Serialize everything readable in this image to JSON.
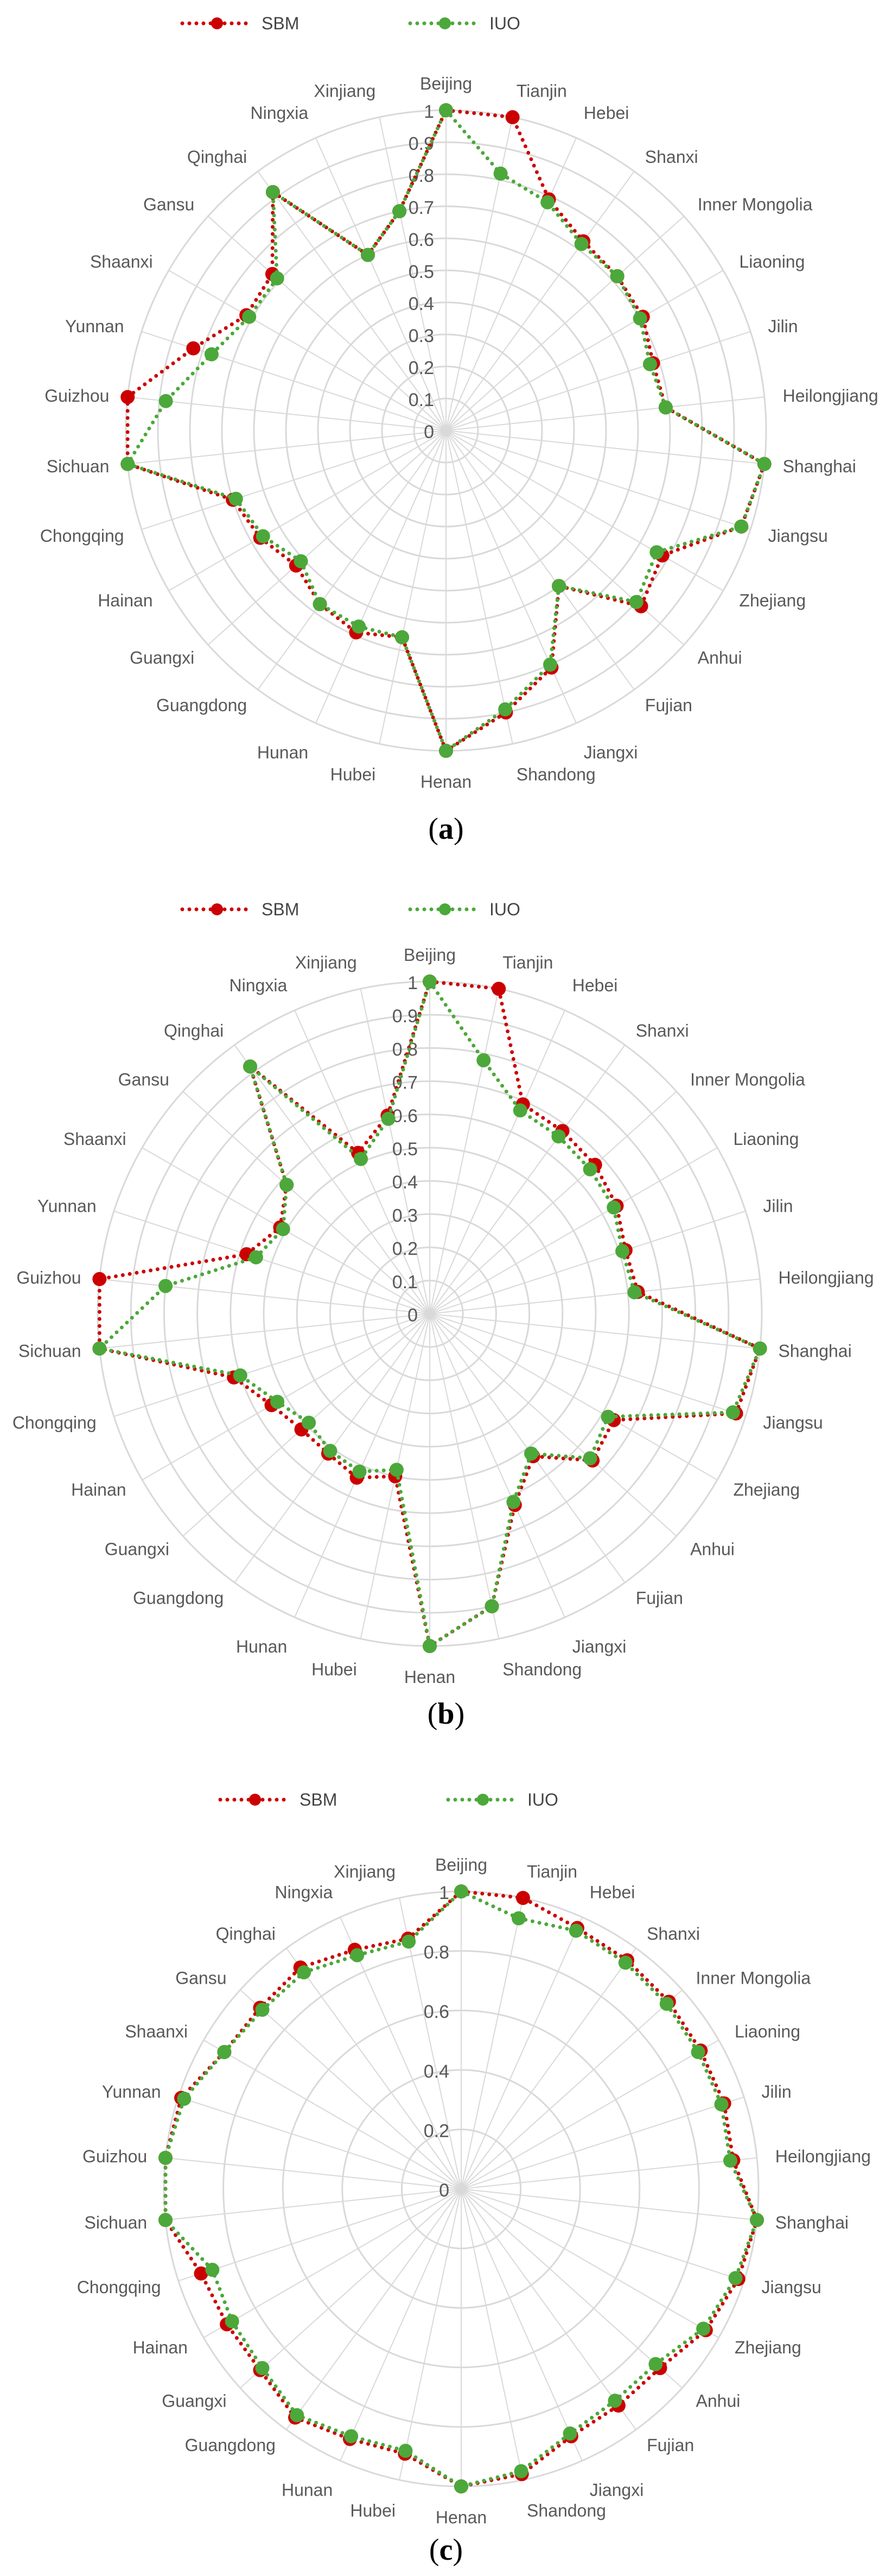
{
  "legend": {
    "sbm": "SBM",
    "iuo": "IUO"
  },
  "colors": {
    "sbm": "#CC0000",
    "iuo": "#4CA83A",
    "grid": "#D9D9D9",
    "text": "#595959"
  },
  "captions": {
    "a": {
      "open": "(",
      "letter": "a",
      "close": ")"
    },
    "b": {
      "open": "(",
      "letter": "b",
      "close": ")"
    },
    "c": {
      "open": "(",
      "letter": "c",
      "close": ")"
    }
  },
  "chart_data": [
    {
      "id": "a",
      "type": "radar",
      "categories": [
        "Beijing",
        "Tianjin",
        "Hebei",
        "Shanxi",
        "Inner Mongolia",
        "Liaoning",
        "Jilin",
        "Heilongjiang",
        "Shanghai",
        "Jiangsu",
        "Zhejiang",
        "Anhui",
        "Fujian",
        "Jiangxi",
        "Shandong",
        "Henan",
        "Hubei",
        "Hunan",
        "Guangdong",
        "Guangxi",
        "Hainan",
        "Chongqing",
        "Sichuan",
        "Guizhou",
        "Yunnan",
        "Shaanxi",
        "Gansu",
        "Qinghai",
        "Ningxia",
        "Xinjiang"
      ],
      "ticks": [
        "0",
        "0.1",
        "0.2",
        "0.3",
        "0.4",
        "0.5",
        "0.6",
        "0.7",
        "0.8",
        "0.9",
        "1"
      ],
      "rmax": 1,
      "series": [
        {
          "name": "SBM",
          "values": [
            1,
            1,
            0.79,
            0.73,
            0.72,
            0.71,
            0.68,
            0.69,
            1,
            0.97,
            0.78,
            0.82,
            0.6,
            0.81,
            0.9,
            1,
            0.66,
            0.69,
            0.67,
            0.63,
            0.67,
            0.7,
            1,
            1,
            0.83,
            0.72,
            0.73,
            0.92,
            0.6,
            0.7
          ]
        },
        {
          "name": "IUO",
          "values": [
            1,
            0.82,
            0.78,
            0.72,
            0.72,
            0.7,
            0.67,
            0.69,
            1,
            0.97,
            0.76,
            0.8,
            0.6,
            0.8,
            0.89,
            1,
            0.66,
            0.67,
            0.67,
            0.61,
            0.66,
            0.69,
            1,
            0.88,
            0.77,
            0.71,
            0.71,
            0.92,
            0.6,
            0.7
          ]
        }
      ]
    },
    {
      "id": "b",
      "type": "radar",
      "categories": [
        "Beijing",
        "Tianjin",
        "Hebei",
        "Shanxi",
        "Inner Mongolia",
        "Liaoning",
        "Jilin",
        "Heilongjiang",
        "Shanghai",
        "Jiangsu",
        "Zhejiang",
        "Anhui",
        "Fujian",
        "Jiangxi",
        "Shandong",
        "Henan",
        "Hubei",
        "Hunan",
        "Guangdong",
        "Guangxi",
        "Hainan",
        "Chongqing",
        "Sichuan",
        "Guizhou",
        "Yunnan",
        "Shaanxi",
        "Gansu",
        "Qinghai",
        "Ningxia",
        "Xinjiang"
      ],
      "ticks": [
        "0",
        "0.1",
        "0.2",
        "0.3",
        "0.4",
        "0.5",
        "0.6",
        "0.7",
        "0.8",
        "0.9",
        "1"
      ],
      "rmax": 1,
      "series": [
        {
          "name": "SBM",
          "values": [
            1,
            1,
            0.69,
            0.68,
            0.67,
            0.65,
            0.62,
            0.63,
            1,
            0.97,
            0.64,
            0.66,
            0.53,
            0.63,
            0.9,
            1,
            0.5,
            0.54,
            0.52,
            0.52,
            0.55,
            0.62,
            1,
            1,
            0.58,
            0.52,
            0.58,
            0.92,
            0.53,
            0.61
          ]
        },
        {
          "name": "IUO",
          "values": [
            1,
            0.78,
            0.67,
            0.66,
            0.65,
            0.64,
            0.61,
            0.62,
            1,
            0.96,
            0.62,
            0.65,
            0.52,
            0.62,
            0.9,
            1,
            0.48,
            0.52,
            0.51,
            0.49,
            0.53,
            0.6,
            1,
            0.8,
            0.55,
            0.51,
            0.58,
            0.92,
            0.51,
            0.6
          ]
        }
      ]
    },
    {
      "id": "c",
      "type": "radar",
      "categories": [
        "Beijing",
        "Tianjin",
        "Hebei",
        "Shanxi",
        "Inner Mongolia",
        "Liaoning",
        "Jilin",
        "Heilongjiang",
        "Shanghai",
        "Jiangsu",
        "Zhejiang",
        "Anhui",
        "Fujian",
        "Jiangxi",
        "Shandong",
        "Henan",
        "Hubei",
        "Hunan",
        "Guangdong",
        "Guangxi",
        "Hainan",
        "Chongqing",
        "Sichuan",
        "Guizhou",
        "Yunnan",
        "Shaanxi",
        "Gansu",
        "Qinghai",
        "Ningxia",
        "Xinjiang"
      ],
      "ticks": [
        "0",
        "0.2",
        "0.4",
        "0.6",
        "0.8",
        "1"
      ],
      "rmax": 1,
      "series": [
        {
          "name": "SBM",
          "values": [
            1,
            1,
            0.96,
            0.95,
            0.94,
            0.93,
            0.93,
            0.92,
            1,
            0.98,
            0.95,
            0.9,
            0.9,
            0.91,
            0.98,
            1,
            0.91,
            0.92,
            0.95,
            0.91,
            0.91,
            0.92,
            1,
            1,
            0.99,
            0.92,
            0.91,
            0.92,
            0.88,
            0.86
          ]
        },
        {
          "name": "IUO",
          "values": [
            1,
            0.93,
            0.95,
            0.94,
            0.93,
            0.92,
            0.92,
            0.91,
            1,
            0.97,
            0.94,
            0.88,
            0.88,
            0.9,
            0.97,
            1,
            0.9,
            0.91,
            0.94,
            0.9,
            0.89,
            0.88,
            1,
            1,
            0.98,
            0.92,
            0.9,
            0.9,
            0.86,
            0.85
          ]
        }
      ]
    }
  ]
}
